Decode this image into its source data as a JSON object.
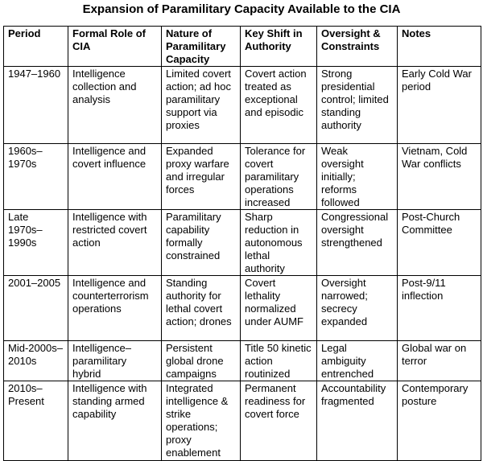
{
  "title": "Expansion of Paramilitary Capacity Available to the CIA",
  "table": {
    "headers": [
      "Period",
      "Formal Role of CIA",
      "Nature of Paramilitary Capacity",
      "Key Shift in Authority",
      "Oversight & Constraints",
      "Notes"
    ],
    "rows": [
      [
        "1947–1960",
        "Intelligence collection and analysis",
        "Limited covert action; ad hoc paramilitary support via proxies",
        "Covert action treated as exceptional and episodic",
        "Strong presidential control; limited standing authority",
        "Early Cold War period"
      ],
      [
        "1960s–1970s",
        "Intelligence and covert influence",
        "Expanded proxy warfare and irregular forces",
        "Tolerance for covert paramilitary operations increased",
        "Weak oversight initially; reforms followed",
        "Vietnam, Cold War conflicts"
      ],
      [
        "Late 1970s–1990s",
        "Intelligence with restricted covert action",
        "Paramilitary capability formally constrained",
        "Sharp reduction in autonomous lethal authority",
        "Congressional oversight strengthened",
        "Post-Church Committee"
      ],
      [
        "2001–2005",
        "Intelligence and counterterrorism operations",
        "Standing authority for lethal covert action; drones",
        "Covert lethality normalized under AUMF",
        "Oversight narrowed; secrecy expanded",
        "Post-9/11 inflection"
      ],
      [
        "Mid-2000s–2010s",
        "Intelligence–paramilitary hybrid",
        "Persistent global drone campaigns",
        "Title 50 kinetic action routinized",
        "Legal ambiguity entrenched",
        "Global war on terror"
      ],
      [
        "2010s–Present",
        "Intelligence with standing armed capability",
        "Integrated intelligence & strike operations; proxy enablement",
        "Permanent readiness for covert force",
        "Accountability fragmented",
        "Contemporary posture"
      ]
    ]
  }
}
